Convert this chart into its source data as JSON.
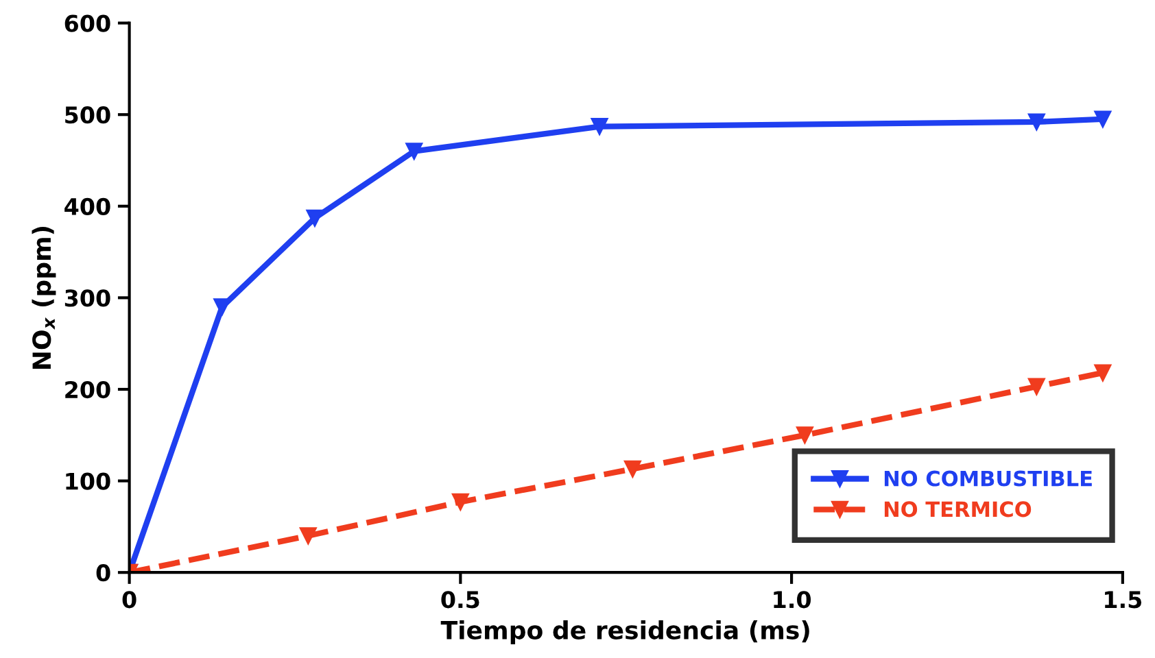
{
  "chart_data": {
    "type": "line",
    "xlabel": "Tiempo de residencia (ms)",
    "ylabel": "NO$_{x}$ (ppm)",
    "xlim": [
      0,
      1.5
    ],
    "xticks": [
      0,
      {
        "value": 0.5,
        "label": "0.5"
      },
      {
        "value": 1.0,
        "label": "1.0"
      },
      {
        "value": 1.5,
        "label": "1.5"
      }
    ],
    "ylim": [
      0,
      600
    ],
    "yticks": [
      0,
      100,
      200,
      300,
      400,
      500,
      600
    ],
    "grid": false,
    "legend": "bottom right",
    "marker": "triangle",
    "series": [
      {
        "name": "NO COMBUSTIBLE",
        "color": "#1f3ff0",
        "line_style": "solid",
        "x": [
          0,
          0.14,
          0.28,
          0.43,
          0.71,
          1.37,
          1.47
        ],
        "values": [
          0,
          290,
          387,
          460,
          487,
          492,
          495
        ]
      },
      {
        "name": "NO TERMICO",
        "color": "#f03c1e",
        "line_style": "dashed",
        "x": [
          0,
          0.27,
          0.5,
          0.76,
          1.02,
          1.37,
          1.47
        ],
        "values": [
          0,
          40,
          77,
          113,
          150,
          203,
          218
        ]
      }
    ]
  }
}
